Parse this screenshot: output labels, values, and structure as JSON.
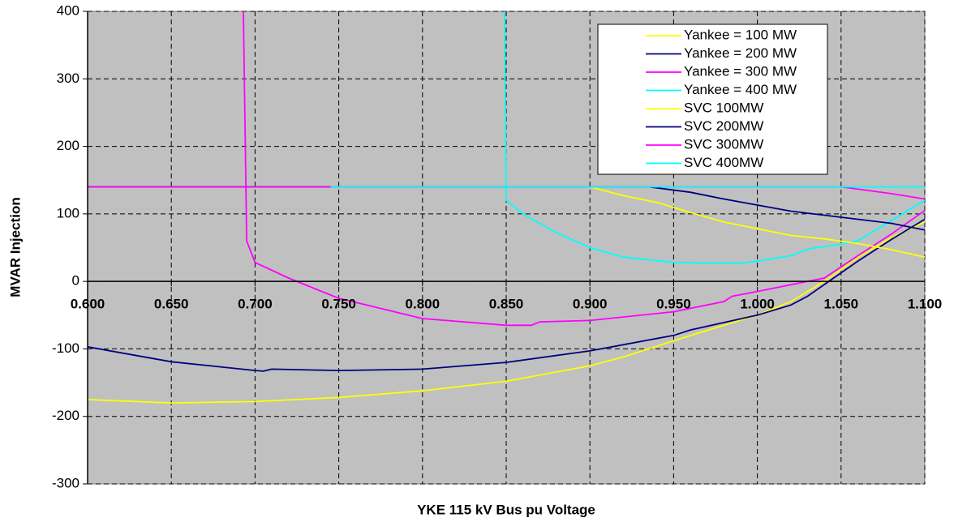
{
  "chart_data": {
    "type": "line",
    "xlabel": "YKE 115 kV Bus pu Voltage",
    "ylabel": "MVAR Injection",
    "xlim": [
      0.6,
      1.1
    ],
    "ylim": [
      -300,
      400
    ],
    "xticks": [
      {
        "value": 0.6,
        "label": "0.600"
      },
      {
        "value": 0.65,
        "label": "0.650"
      },
      {
        "value": 0.7,
        "label": "0.700"
      },
      {
        "value": 0.75,
        "label": "0.750"
      },
      {
        "value": 0.8,
        "label": "0.800"
      },
      {
        "value": 0.85,
        "label": "0.850"
      },
      {
        "value": 0.9,
        "label": "0.900"
      },
      {
        "value": 0.95,
        "label": "0.950"
      },
      {
        "value": 1.0,
        "label": "1.000"
      },
      {
        "value": 1.05,
        "label": "1.050"
      },
      {
        "value": 1.1,
        "label": "1.100"
      }
    ],
    "yticks": [
      -300,
      -200,
      -100,
      0,
      100,
      200,
      300,
      400
    ],
    "grid": true,
    "legend": "upper right",
    "series": [
      {
        "name": "Yankee = 100 MW",
        "color": "#ffff00",
        "x": [
          0.6,
          0.65,
          0.7,
          0.75,
          0.8,
          0.85,
          0.9,
          0.92,
          0.95,
          0.98,
          1.0,
          1.02,
          1.04,
          1.06,
          1.08,
          1.1
        ],
        "values": [
          -175,
          -180,
          -178,
          -172,
          -162,
          -148,
          -125,
          -112,
          -88,
          -65,
          -50,
          -30,
          0,
          35,
          65,
          88
        ]
      },
      {
        "name": "Yankee = 200 MW",
        "color": "#000080",
        "x": [
          0.6,
          0.65,
          0.7,
          0.705,
          0.71,
          0.75,
          0.8,
          0.85,
          0.9,
          0.95,
          0.96,
          1.0,
          1.02,
          1.03,
          1.06,
          1.08,
          1.1
        ],
        "values": [
          -97,
          -119,
          -132,
          -133,
          -130,
          -132,
          -130,
          -120,
          -103,
          -80,
          -72,
          -50,
          -35,
          -22,
          30,
          62,
          92
        ]
      },
      {
        "name": "Yankee = 300 MW",
        "color": "#ff00ff",
        "x": [
          0.693,
          0.695,
          0.7,
          0.72,
          0.75,
          0.8,
          0.85,
          0.865,
          0.87,
          0.9,
          0.95,
          0.98,
          0.985,
          1.0,
          1.02,
          1.04,
          1.06,
          1.08,
          1.1
        ],
        "values": [
          400,
          60,
          28,
          5,
          -25,
          -55,
          -65,
          -65,
          -60,
          -58,
          -45,
          -30,
          -22,
          -15,
          -5,
          5,
          38,
          70,
          105
        ]
      },
      {
        "name": "Yankee = 400 MW",
        "color": "#00ffff",
        "x": [
          0.849,
          0.85,
          0.86,
          0.88,
          0.9,
          0.92,
          0.95,
          0.97,
          0.99,
          1.0,
          1.02,
          1.03,
          1.05,
          1.06,
          1.08,
          1.1
        ],
        "values": [
          400,
          120,
          100,
          72,
          50,
          36,
          28,
          27,
          27,
          30,
          38,
          48,
          55,
          60,
          90,
          120
        ]
      },
      {
        "name": "SVC 100MW",
        "color": "#ffff00",
        "x": [
          0.6,
          0.9,
          0.92,
          0.94,
          0.96,
          0.98,
          1.0,
          1.02,
          1.04,
          1.06,
          1.08,
          1.1
        ],
        "values": [
          140,
          140,
          127,
          117,
          102,
          88,
          78,
          68,
          63,
          56,
          47,
          36
        ]
      },
      {
        "name": "SVC 200MW",
        "color": "#000080",
        "x": [
          0.6,
          0.935,
          0.96,
          0.98,
          1.0,
          1.02,
          1.04,
          1.06,
          1.08,
          1.1
        ],
        "values": [
          140,
          140,
          132,
          122,
          113,
          104,
          98,
          92,
          86,
          76
        ]
      },
      {
        "name": "SVC 300MW",
        "color": "#ff00ff",
        "x": [
          0.6,
          1.05,
          1.08,
          1.1
        ],
        "values": [
          140,
          140,
          130,
          122
        ]
      },
      {
        "name": "SVC 400MW",
        "color": "#00ffff",
        "x": [
          0.745,
          1.1
        ],
        "values": [
          140,
          140
        ]
      }
    ]
  }
}
